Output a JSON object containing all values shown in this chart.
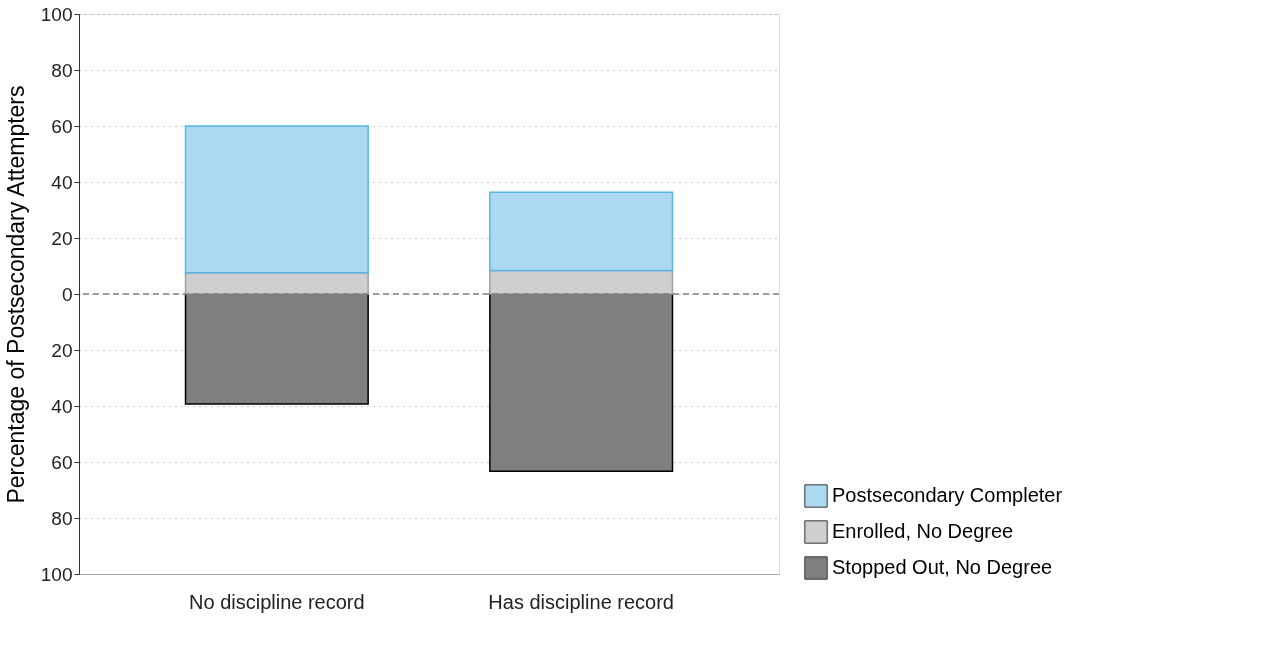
{
  "chart_data": {
    "type": "bar",
    "stacked": true,
    "ylabel": "Percentage of Postsecondary Attempters",
    "categories": [
      "No discipline record",
      "Has discipline record"
    ],
    "series": [
      {
        "name": "Stopped Out, No Degree",
        "color": "#7f7f7f",
        "values": [
          -39.3,
          -63.3
        ]
      },
      {
        "name": "Enrolled, No Degree",
        "color": "#cfcfcf",
        "values": [
          7.6,
          8.4
        ]
      },
      {
        "name": "Postsecondary Completer",
        "color": "#add8f2",
        "values": [
          52.4,
          27.9
        ]
      }
    ],
    "ylim": [
      -100,
      100
    ],
    "yticks": [
      {
        "value": -100,
        "label": "100"
      },
      {
        "value": -80,
        "label": "80"
      },
      {
        "value": -60,
        "label": "60"
      },
      {
        "value": -40,
        "label": "40"
      },
      {
        "value": -20,
        "label": "20"
      },
      0,
      20,
      40,
      60,
      80,
      100
    ],
    "ref_lines": [
      {
        "axis": "y",
        "value": 0,
        "line_style": "dashed",
        "color": "#808080"
      }
    ],
    "grid": "y",
    "legend": "bottom right"
  }
}
